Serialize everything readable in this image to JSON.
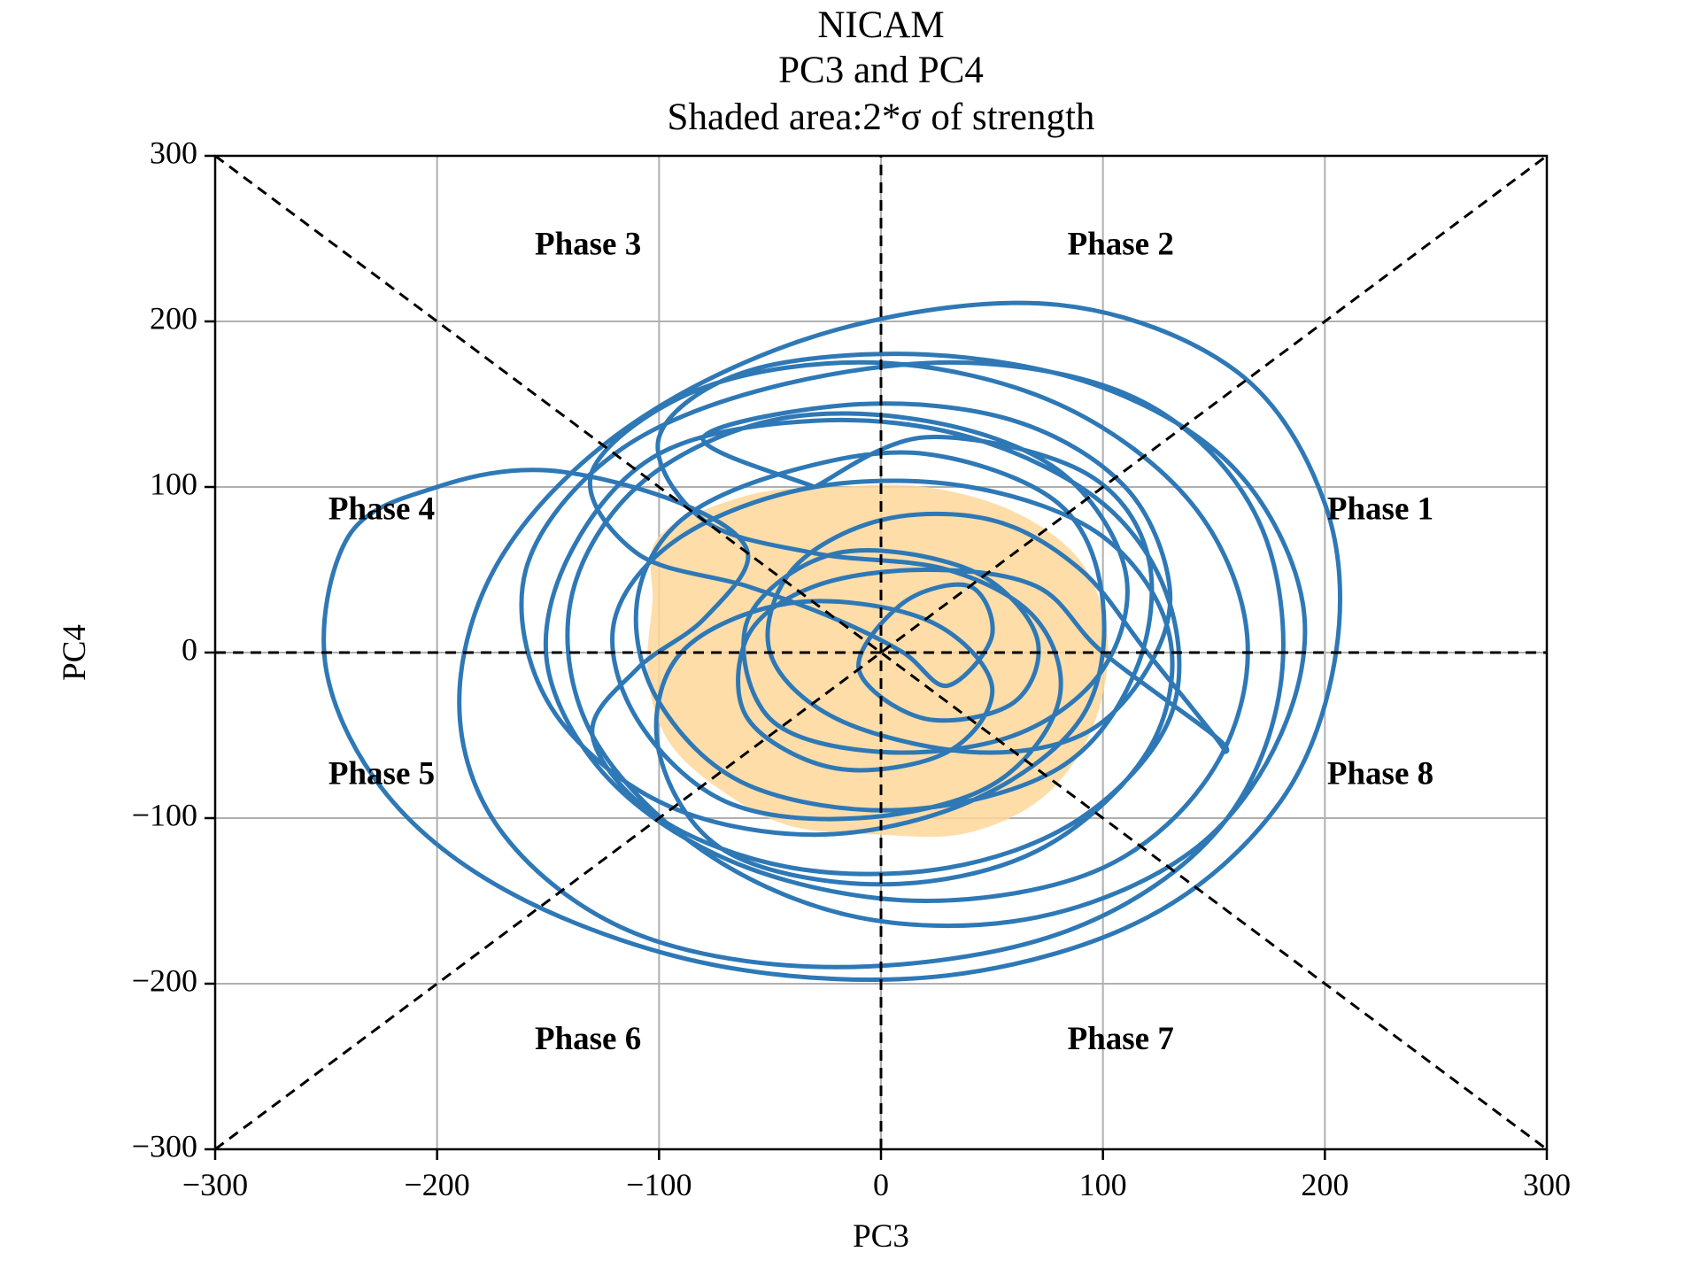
{
  "chart_data": {
    "type": "line",
    "title_lines": [
      "NICAM",
      "PC3 and PC4",
      "Shaded area:2*σ of strength"
    ],
    "xlabel": "PC3",
    "ylabel": "PC4",
    "xlim": [
      -300,
      300
    ],
    "ylim": [
      -300,
      300
    ],
    "xticks": [
      -300,
      -200,
      -100,
      0,
      100,
      200,
      300
    ],
    "yticks": [
      -300,
      -200,
      -100,
      0,
      100,
      200,
      300
    ],
    "xtick_labels": [
      "−300",
      "−200",
      "−100",
      "0",
      "100",
      "200",
      "300"
    ],
    "ytick_labels": [
      "−300",
      "−200",
      "−100",
      "0",
      "100",
      "200",
      "300"
    ],
    "grid": true,
    "series_color": "#2e78b6",
    "shade_color": "#ffd79a",
    "shaded_region": {
      "description_label": "2*σ of strength",
      "polygon": [
        [
          -100,
          70
        ],
        [
          -60,
          95
        ],
        [
          -20,
          100
        ],
        [
          20,
          100
        ],
        [
          60,
          85
        ],
        [
          90,
          55
        ],
        [
          102,
          10
        ],
        [
          98,
          -35
        ],
        [
          85,
          -70
        ],
        [
          65,
          -95
        ],
        [
          35,
          -110
        ],
        [
          0,
          -110
        ],
        [
          -40,
          -105
        ],
        [
          -70,
          -85
        ],
        [
          -95,
          -55
        ],
        [
          -105,
          -15
        ],
        [
          -103,
          30
        ]
      ]
    },
    "phase_labels": [
      {
        "text": "Phase 1",
        "x": 225,
        "y": 85
      },
      {
        "text": "Phase 2",
        "x": 108,
        "y": 245
      },
      {
        "text": "Phase 3",
        "x": -132,
        "y": 245
      },
      {
        "text": "Phase 4",
        "x": -225,
        "y": 85
      },
      {
        "text": "Phase 5",
        "x": -225,
        "y": -75
      },
      {
        "text": "Phase 6",
        "x": -132,
        "y": -235
      },
      {
        "text": "Phase 7",
        "x": 108,
        "y": -235
      },
      {
        "text": "Phase 8",
        "x": 225,
        "y": -75
      }
    ],
    "series": [
      {
        "values": [
          [
            -30,
            100
          ],
          [
            20,
            130
          ],
          [
            90,
            110
          ],
          [
            120,
            60
          ],
          [
            115,
            -10
          ],
          [
            80,
            -70
          ],
          [
            10,
            -95
          ],
          [
            -60,
            -80
          ],
          [
            -100,
            -30
          ],
          [
            -110,
            30
          ],
          [
            -90,
            80
          ],
          [
            -40,
            110
          ],
          [
            20,
            120
          ],
          [
            80,
            90
          ],
          [
            100,
            30
          ],
          [
            90,
            -40
          ],
          [
            40,
            -90
          ],
          [
            -30,
            -110
          ],
          [
            -100,
            -90
          ],
          [
            -150,
            -30
          ],
          [
            -160,
            50
          ],
          [
            -120,
            120
          ],
          [
            -50,
            160
          ],
          [
            40,
            175
          ],
          [
            120,
            150
          ],
          [
            170,
            80
          ],
          [
            180,
            -20
          ],
          [
            150,
            -110
          ],
          [
            80,
            -170
          ],
          [
            -20,
            -190
          ],
          [
            -110,
            -170
          ],
          [
            -170,
            -110
          ],
          [
            -190,
            -30
          ],
          [
            -170,
            60
          ],
          [
            -110,
            140
          ],
          [
            -20,
            195
          ],
          [
            80,
            210
          ],
          [
            160,
            170
          ],
          [
            200,
            90
          ],
          [
            205,
            0
          ],
          [
            180,
            -90
          ],
          [
            120,
            -160
          ],
          [
            30,
            -195
          ],
          [
            -70,
            -190
          ],
          [
            -160,
            -150
          ],
          [
            -220,
            -90
          ],
          [
            -250,
            -10
          ],
          [
            -240,
            70
          ],
          [
            -200,
            100
          ],
          [
            -150,
            110
          ],
          [
            -90,
            90
          ],
          [
            -60,
            60
          ],
          [
            -80,
            20
          ],
          [
            -110,
            -10
          ],
          [
            -130,
            -50
          ],
          [
            -100,
            -100
          ],
          [
            -40,
            -130
          ],
          [
            30,
            -130
          ],
          [
            90,
            -100
          ],
          [
            130,
            -40
          ],
          [
            130,
            30
          ],
          [
            100,
            90
          ],
          [
            40,
            130
          ],
          [
            -30,
            140
          ],
          [
            -100,
            120
          ],
          [
            -140,
            60
          ],
          [
            -150,
            -10
          ],
          [
            -120,
            -80
          ],
          [
            -60,
            -130
          ],
          [
            20,
            -150
          ],
          [
            100,
            -130
          ],
          [
            150,
            -70
          ],
          [
            165,
            10
          ],
          [
            140,
            90
          ],
          [
            80,
            150
          ],
          [
            0,
            175
          ],
          [
            -80,
            160
          ],
          [
            -130,
            110
          ],
          [
            -110,
            60
          ],
          [
            -60,
            40
          ],
          [
            -20,
            20
          ],
          [
            10,
            0
          ],
          [
            30,
            -20
          ],
          [
            50,
            10
          ],
          [
            40,
            40
          ],
          [
            10,
            30
          ],
          [
            -10,
            -10
          ],
          [
            20,
            -40
          ],
          [
            60,
            -30
          ],
          [
            70,
            10
          ],
          [
            40,
            50
          ],
          [
            -20,
            60
          ],
          [
            -60,
            20
          ],
          [
            -50,
            -40
          ],
          [
            0,
            -60
          ],
          [
            60,
            -50
          ],
          [
            100,
            -10
          ],
          [
            110,
            50
          ],
          [
            80,
            110
          ],
          [
            20,
            140
          ],
          [
            -50,
            140
          ],
          [
            -110,
            100
          ],
          [
            -140,
            30
          ],
          [
            -130,
            -50
          ],
          [
            -80,
            -120
          ],
          [
            -10,
            -160
          ],
          [
            70,
            -160
          ],
          [
            140,
            -120
          ],
          [
            180,
            -50
          ],
          [
            190,
            30
          ],
          [
            160,
            110
          ],
          [
            100,
            160
          ],
          [
            20,
            180
          ],
          [
            -60,
            170
          ],
          [
            -100,
            130
          ],
          [
            -80,
            80
          ],
          [
            -30,
            60
          ],
          [
            30,
            50
          ],
          [
            70,
            20
          ],
          [
            80,
            -30
          ],
          [
            50,
            -80
          ],
          [
            -10,
            -100
          ],
          [
            -70,
            -90
          ],
          [
            -110,
            -40
          ],
          [
            -120,
            20
          ],
          [
            -90,
            70
          ],
          [
            -30,
            100
          ],
          [
            40,
            100
          ],
          [
            100,
            70
          ],
          [
            130,
            10
          ],
          [
            120,
            -60
          ],
          [
            70,
            -120
          ],
          [
            0,
            -140
          ],
          [
            -70,
            -120
          ],
          [
            -100,
            -60
          ],
          [
            -90,
            0
          ],
          [
            -40,
            30
          ],
          [
            20,
            20
          ],
          [
            50,
            -20
          ],
          [
            30,
            -60
          ],
          [
            -20,
            -70
          ],
          [
            -60,
            -40
          ],
          [
            -60,
            10
          ],
          [
            -30,
            40
          ],
          [
            20,
            50
          ],
          [
            70,
            40
          ],
          [
            100,
            0
          ],
          [
            150,
            -50
          ],
          [
            155,
            -60
          ],
          [
            150,
            -50
          ],
          [
            120,
            0
          ],
          [
            90,
            50
          ],
          [
            50,
            80
          ],
          [
            0,
            80
          ],
          [
            -40,
            50
          ],
          [
            -50,
            0
          ],
          [
            -20,
            -40
          ],
          [
            40,
            -60
          ],
          [
            90,
            -50
          ],
          [
            120,
            -10
          ],
          [
            130,
            40
          ],
          [
            110,
            100
          ],
          [
            60,
            140
          ],
          [
            -10,
            150
          ],
          [
            -80,
            130
          ],
          [
            -30,
            100
          ]
        ]
      }
    ]
  }
}
